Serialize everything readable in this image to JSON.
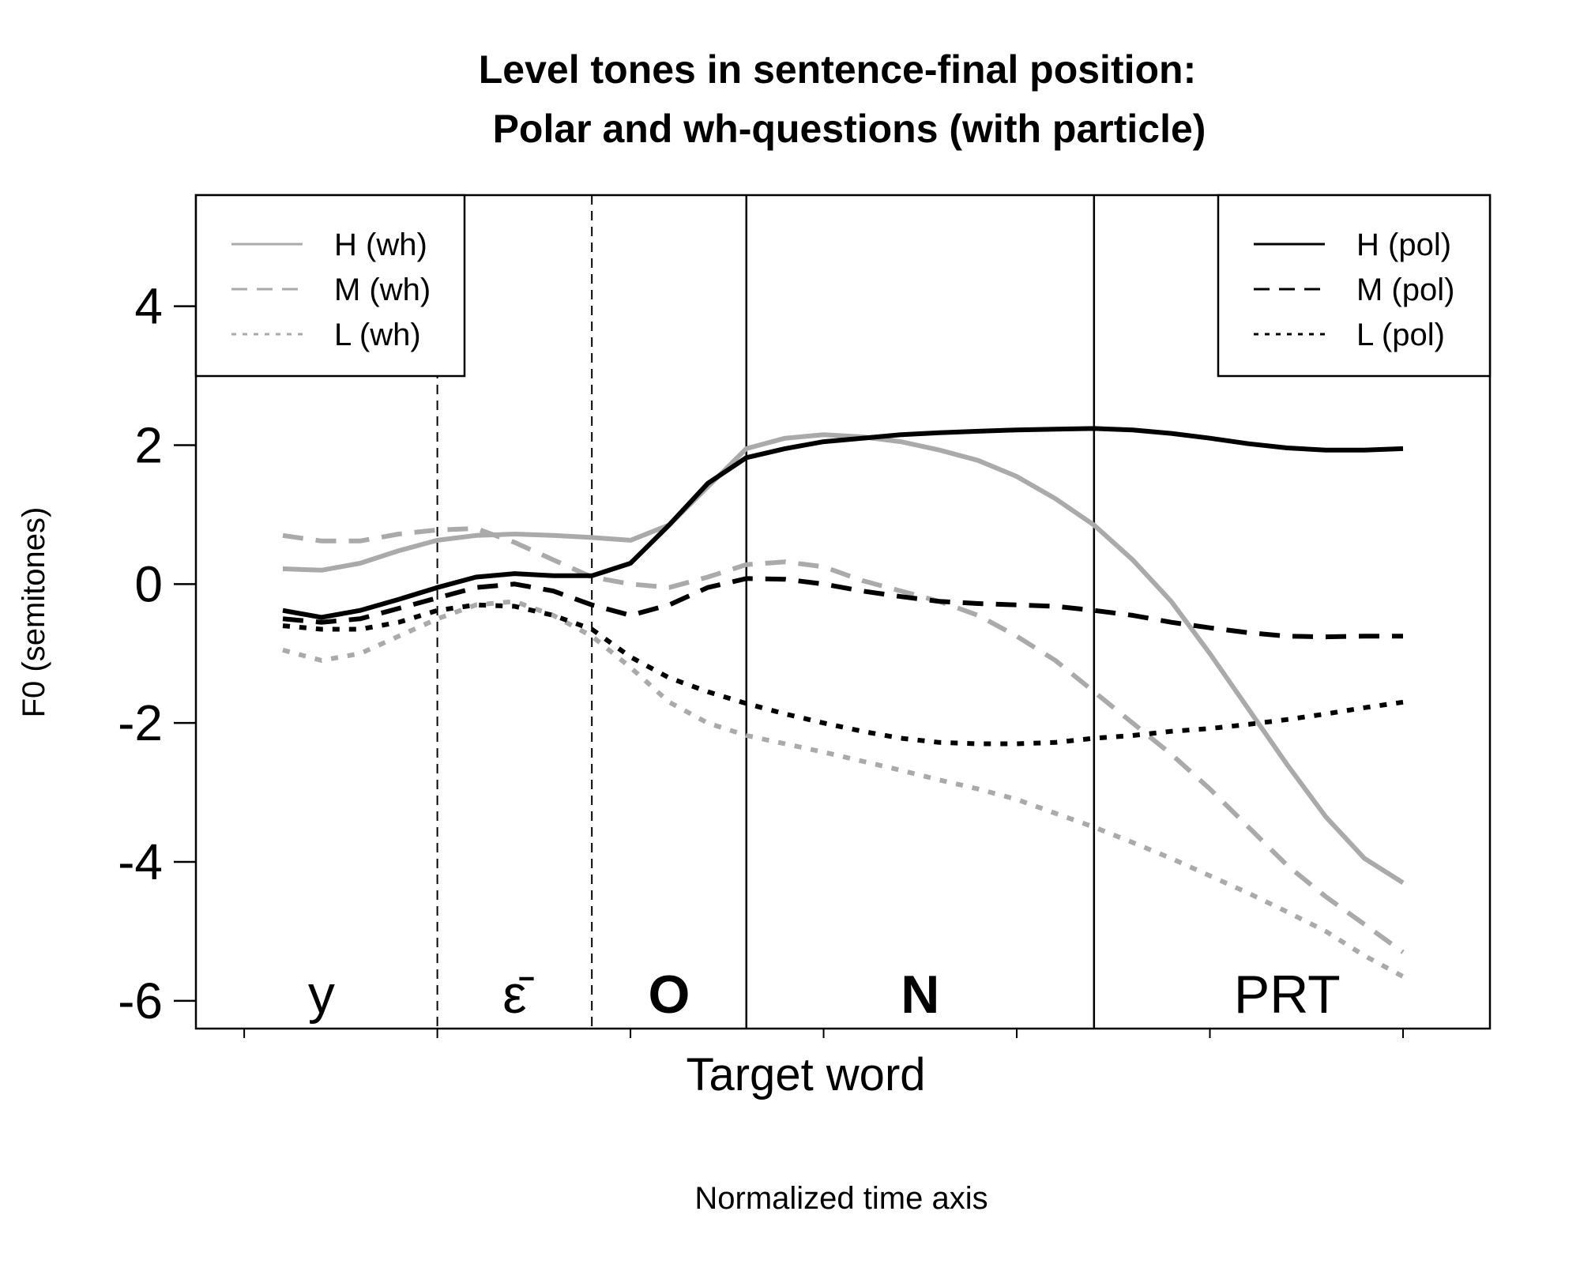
{
  "chart_data": {
    "type": "line",
    "title_line1": "Level tones in sentence-final position:",
    "title_line2": "Polar and wh-questions (with particle)",
    "ylabel": "F0 (semitones)",
    "xlabel": "Target word",
    "xlabel2": "Normalized time axis",
    "ylim": [
      -6.4,
      5.6
    ],
    "xlim": [
      -0.25,
      6.45
    ],
    "yticks": [
      4,
      2,
      0,
      -2,
      -4,
      -6
    ],
    "ytick_labels": [
      "4",
      "2",
      "0",
      "-2",
      "-4",
      "-6"
    ],
    "xticks": [
      0,
      1,
      2,
      3,
      4,
      5,
      6
    ],
    "segment_boundaries": [
      {
        "x": 1.0,
        "style": "dashed"
      },
      {
        "x": 1.8,
        "style": "dashed"
      },
      {
        "x": 2.6,
        "style": "solid"
      },
      {
        "x": 4.4,
        "style": "solid"
      }
    ],
    "segments": [
      {
        "label": "y",
        "x": 0.4,
        "bold": false
      },
      {
        "label": "ε̄",
        "x": 1.4,
        "bold": false
      },
      {
        "label": "O",
        "x": 2.2,
        "bold": true
      },
      {
        "label": "N",
        "x": 3.5,
        "bold": true
      },
      {
        "label": "PRT",
        "x": 5.4,
        "bold": false
      }
    ],
    "series": [
      {
        "name": "H (wh)",
        "color": "#aaaaaa",
        "dash": "solid",
        "x": [
          0.2,
          0.4,
          0.6,
          0.8,
          1.0,
          1.2,
          1.4,
          1.6,
          1.8,
          2.0,
          2.2,
          2.4,
          2.6,
          2.8,
          3.0,
          3.2,
          3.4,
          3.6,
          3.8,
          4.0,
          4.2,
          4.4,
          4.6,
          4.8,
          5.0,
          5.2,
          5.4,
          5.6,
          5.8,
          6.0
        ],
        "y": [
          0.22,
          0.2,
          0.3,
          0.48,
          0.63,
          0.7,
          0.72,
          0.7,
          0.67,
          0.63,
          0.85,
          1.4,
          1.95,
          2.1,
          2.15,
          2.12,
          2.05,
          1.93,
          1.78,
          1.55,
          1.23,
          0.85,
          0.35,
          -0.25,
          -1.0,
          -1.8,
          -2.6,
          -3.35,
          -3.95,
          -4.3
        ]
      },
      {
        "name": "M (wh)",
        "color": "#aaaaaa",
        "dash": "dashed",
        "x": [
          0.2,
          0.4,
          0.6,
          0.8,
          1.0,
          1.2,
          1.4,
          1.6,
          1.8,
          2.0,
          2.2,
          2.4,
          2.6,
          2.8,
          3.0,
          3.2,
          3.4,
          3.6,
          3.8,
          4.0,
          4.2,
          4.4,
          4.6,
          4.8,
          5.0,
          5.2,
          5.4,
          5.6,
          5.8,
          6.0
        ],
        "y": [
          0.7,
          0.62,
          0.62,
          0.72,
          0.78,
          0.8,
          0.6,
          0.35,
          0.1,
          0.0,
          -0.05,
          0.1,
          0.28,
          0.32,
          0.25,
          0.05,
          -0.1,
          -0.25,
          -0.45,
          -0.75,
          -1.1,
          -1.55,
          -2.0,
          -2.45,
          -2.95,
          -3.5,
          -4.05,
          -4.5,
          -4.9,
          -5.3
        ]
      },
      {
        "name": "L (wh)",
        "color": "#aaaaaa",
        "dash": "dotted",
        "x": [
          0.2,
          0.4,
          0.6,
          0.8,
          1.0,
          1.2,
          1.4,
          1.6,
          1.8,
          2.0,
          2.2,
          2.4,
          2.6,
          2.8,
          3.0,
          3.2,
          3.4,
          3.6,
          3.8,
          4.0,
          4.2,
          4.4,
          4.6,
          4.8,
          5.0,
          5.2,
          5.4,
          5.6,
          5.8,
          6.0
        ],
        "y": [
          -0.95,
          -1.1,
          -1.0,
          -0.75,
          -0.5,
          -0.3,
          -0.25,
          -0.45,
          -0.75,
          -1.2,
          -1.7,
          -2.0,
          -2.18,
          -2.3,
          -2.42,
          -2.55,
          -2.68,
          -2.82,
          -2.95,
          -3.1,
          -3.3,
          -3.5,
          -3.72,
          -3.95,
          -4.2,
          -4.45,
          -4.72,
          -5.0,
          -5.35,
          -5.65
        ]
      },
      {
        "name": "H (pol)",
        "color": "#000000",
        "dash": "solid",
        "x": [
          0.2,
          0.4,
          0.6,
          0.8,
          1.0,
          1.2,
          1.4,
          1.6,
          1.8,
          2.0,
          2.2,
          2.4,
          2.6,
          2.8,
          3.0,
          3.2,
          3.4,
          3.6,
          3.8,
          4.0,
          4.2,
          4.4,
          4.6,
          4.8,
          5.0,
          5.2,
          5.4,
          5.6,
          5.8,
          6.0
        ],
        "y": [
          -0.38,
          -0.48,
          -0.38,
          -0.22,
          -0.05,
          0.1,
          0.15,
          0.12,
          0.12,
          0.3,
          0.85,
          1.45,
          1.82,
          1.95,
          2.05,
          2.1,
          2.15,
          2.18,
          2.2,
          2.22,
          2.23,
          2.24,
          2.22,
          2.17,
          2.1,
          2.02,
          1.96,
          1.93,
          1.93,
          1.95
        ]
      },
      {
        "name": "M (pol)",
        "color": "#000000",
        "dash": "dashed",
        "x": [
          0.2,
          0.4,
          0.6,
          0.8,
          1.0,
          1.2,
          1.4,
          1.6,
          1.8,
          2.0,
          2.2,
          2.4,
          2.6,
          2.8,
          3.0,
          3.2,
          3.4,
          3.6,
          3.8,
          4.0,
          4.2,
          4.4,
          4.6,
          4.8,
          5.0,
          5.2,
          5.4,
          5.6,
          5.8,
          6.0
        ],
        "y": [
          -0.5,
          -0.55,
          -0.5,
          -0.35,
          -0.2,
          -0.05,
          0.0,
          -0.1,
          -0.3,
          -0.45,
          -0.3,
          -0.05,
          0.08,
          0.07,
          0.0,
          -0.1,
          -0.18,
          -0.25,
          -0.28,
          -0.3,
          -0.32,
          -0.38,
          -0.45,
          -0.55,
          -0.63,
          -0.7,
          -0.75,
          -0.76,
          -0.75,
          -0.75
        ]
      },
      {
        "name": "L (pol)",
        "color": "#000000",
        "dash": "dotted",
        "x": [
          0.2,
          0.4,
          0.6,
          0.8,
          1.0,
          1.2,
          1.4,
          1.6,
          1.8,
          2.0,
          2.2,
          2.4,
          2.6,
          2.8,
          3.0,
          3.2,
          3.4,
          3.6,
          3.8,
          4.0,
          4.2,
          4.4,
          4.6,
          4.8,
          5.0,
          5.2,
          5.4,
          5.6,
          5.8,
          6.0
        ],
        "y": [
          -0.6,
          -0.65,
          -0.65,
          -0.55,
          -0.38,
          -0.3,
          -0.32,
          -0.45,
          -0.65,
          -1.05,
          -1.35,
          -1.55,
          -1.72,
          -1.87,
          -2.0,
          -2.12,
          -2.22,
          -2.28,
          -2.3,
          -2.3,
          -2.28,
          -2.22,
          -2.18,
          -2.12,
          -2.08,
          -2.02,
          -1.95,
          -1.87,
          -1.78,
          -1.7
        ]
      }
    ],
    "legends": [
      {
        "position": "top-left",
        "entries": [
          "H (wh)",
          "M (wh)",
          "L (wh)"
        ]
      },
      {
        "position": "top-right",
        "entries": [
          "H (pol)",
          "M (pol)",
          "L (pol)"
        ]
      }
    ]
  }
}
